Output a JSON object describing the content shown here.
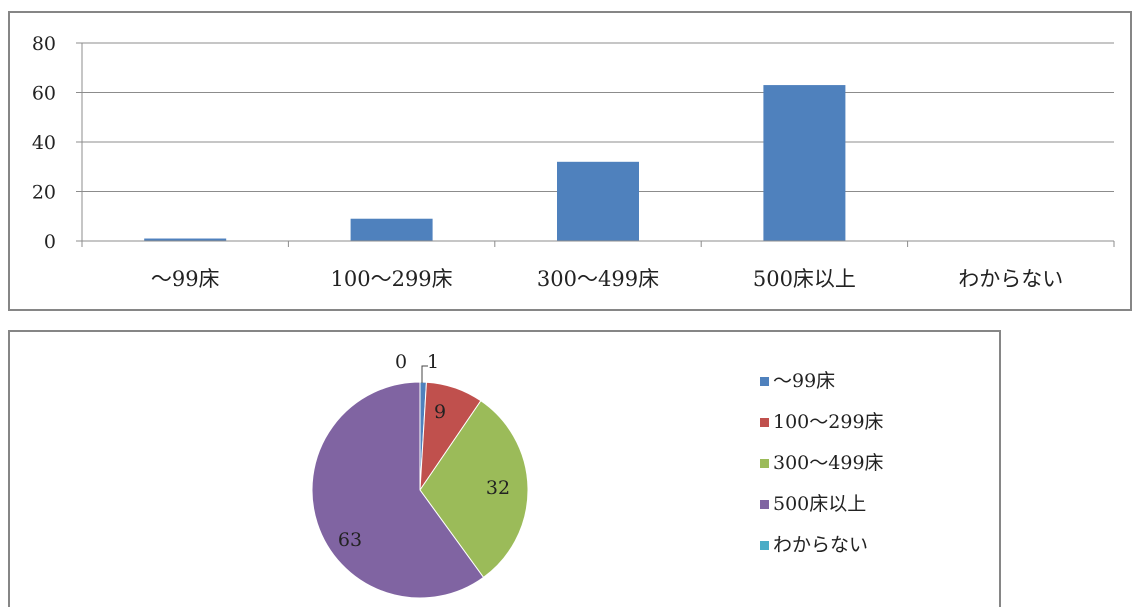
{
  "chart_data": [
    {
      "type": "bar",
      "categories": [
        "～99床",
        "100～299床",
        "300～499床",
        "500床以上",
        "わからない"
      ],
      "values": [
        1,
        9,
        32,
        63,
        0
      ],
      "ylim": [
        0,
        80
      ],
      "yticks": [
        "0",
        "20",
        "40",
        "60",
        "80"
      ],
      "grid": true,
      "legend": "none",
      "color": "#4F81BD"
    },
    {
      "type": "pie",
      "categories": [
        "～99床",
        "100～299床",
        "300～499床",
        "500床以上",
        "わからない"
      ],
      "values": [
        1,
        9,
        32,
        63,
        0
      ],
      "labels": [
        "1",
        "9",
        "32",
        "63",
        "0"
      ],
      "colors": [
        "#4F81BD",
        "#C0504D",
        "#9BBB59",
        "#8064A2",
        "#4BACC6"
      ],
      "legend": "right"
    }
  ]
}
